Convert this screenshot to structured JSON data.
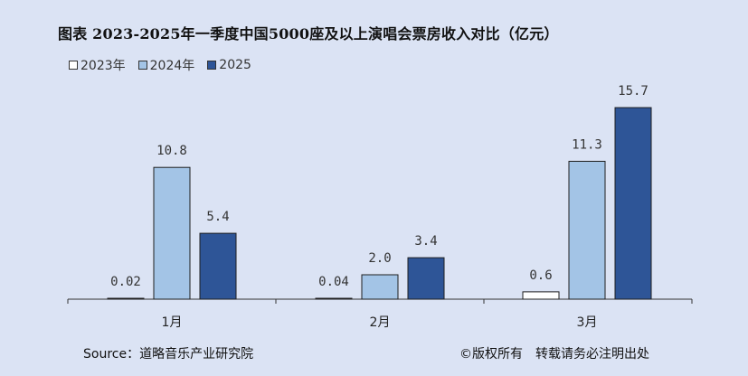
{
  "chart_data": {
    "type": "bar",
    "title": "图表 2023-2025年一季度中国5000座及以上演唱会票房收入对比（亿元）",
    "categories": [
      "1月",
      "2月",
      "3月"
    ],
    "series": [
      {
        "name": "2023年",
        "color": "#ffffff",
        "values": [
          0.02,
          0.04,
          0.6
        ],
        "labels": [
          "0.02",
          "0.04",
          "0.6"
        ]
      },
      {
        "name": "2024年",
        "color": "#a3c4e6",
        "values": [
          10.8,
          2.0,
          11.3
        ],
        "labels": [
          "10.8",
          "2.0",
          "11.3"
        ]
      },
      {
        "name": "2025",
        "color": "#2e5597",
        "values": [
          5.4,
          3.4,
          15.7
        ],
        "labels": [
          "5.4",
          "3.4",
          "15.7"
        ]
      }
    ],
    "ylim": [
      0,
      16
    ],
    "grid": false,
    "legend_position": "top-left"
  },
  "notes": {
    "source": "Source：道略音乐产业研究院",
    "copyright": "©版权所有　转载请务必注明出处"
  }
}
